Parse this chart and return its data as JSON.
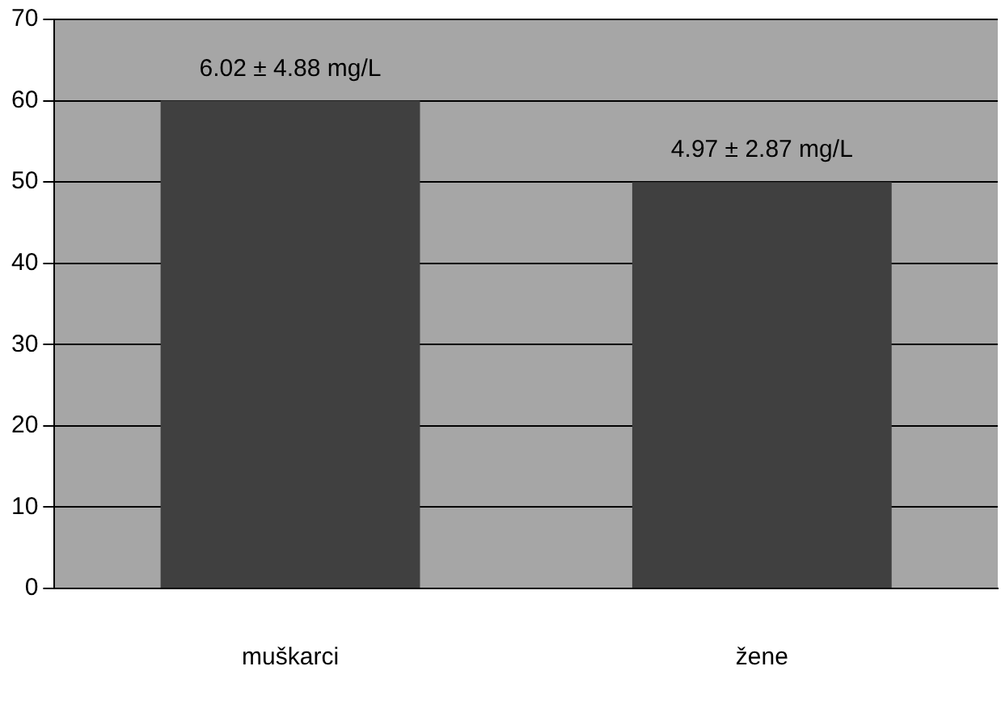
{
  "chart_data": {
    "type": "bar",
    "categories": [
      "muškarci",
      "žene"
    ],
    "values": [
      60,
      50
    ],
    "color": "#404040",
    "ylim": [
      0,
      70
    ],
    "yticks": [
      0,
      10,
      20,
      30,
      40,
      50,
      60,
      70
    ],
    "grid": "y",
    "legend": false,
    "annotations": [
      {
        "text": "6.02 ± 4.88 mg/L",
        "x": "muškarci",
        "y": 60
      },
      {
        "text": "4.97 ± 2.87 mg/L",
        "x": "žene",
        "y": 50
      }
    ]
  }
}
